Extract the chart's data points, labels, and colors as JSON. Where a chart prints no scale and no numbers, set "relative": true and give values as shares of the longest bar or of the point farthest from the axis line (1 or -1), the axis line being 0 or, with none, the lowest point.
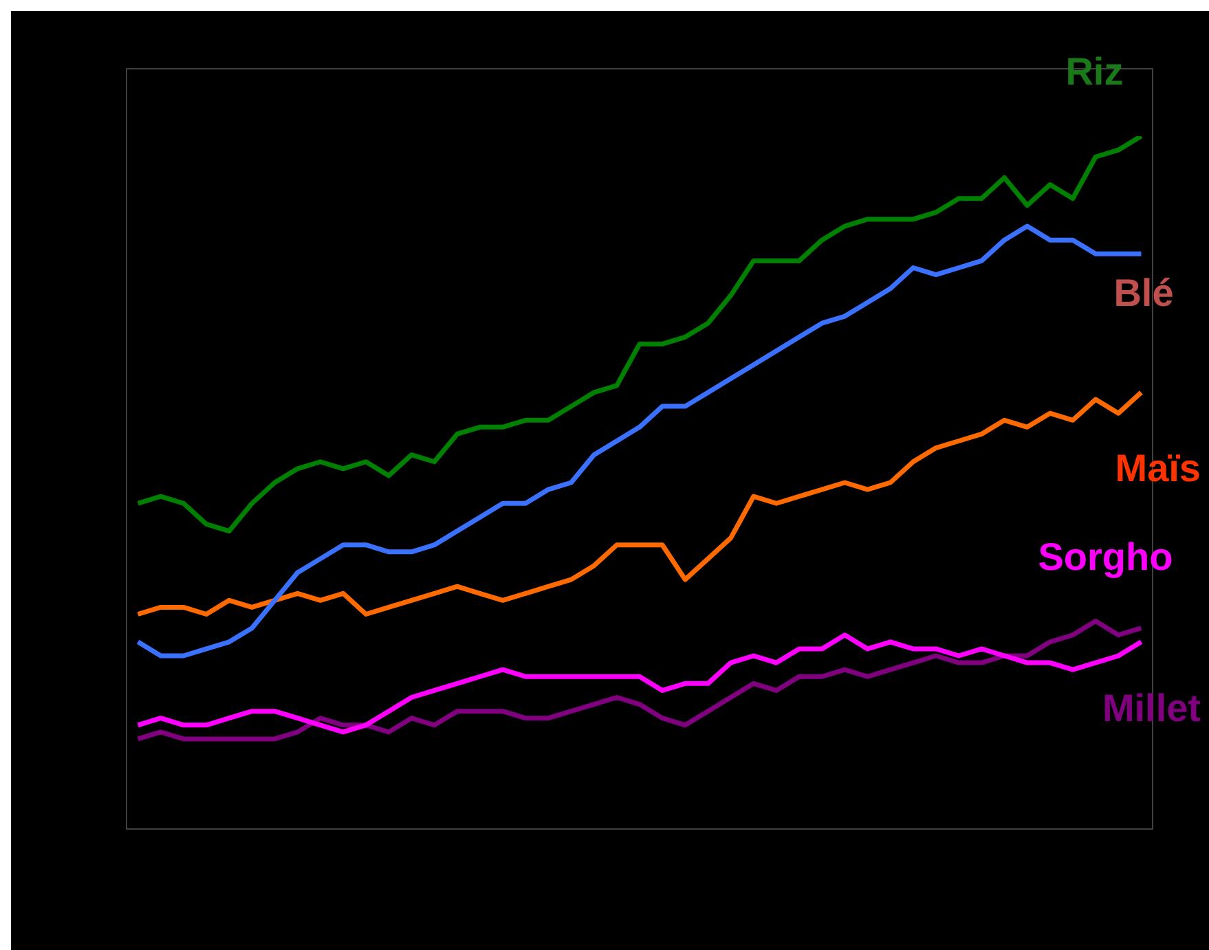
{
  "chart_data": {
    "type": "line",
    "relative": true,
    "legend": false,
    "marker": "none",
    "line_style": "solid",
    "categories": [
      null,
      null,
      null,
      null,
      null,
      null,
      null,
      null,
      null,
      null,
      null,
      null,
      null,
      null,
      null,
      null,
      null,
      null,
      null,
      null,
      null,
      null,
      null,
      null,
      null,
      null,
      null,
      null,
      null,
      null,
      null,
      null,
      null,
      null,
      null,
      null,
      null,
      null,
      null,
      null,
      null,
      null,
      null,
      null,
      null
    ],
    "series": [
      {
        "name": "Riz",
        "color": "#008000",
        "values": [
          0.47,
          0.48,
          0.47,
          0.44,
          0.43,
          0.47,
          0.5,
          0.52,
          0.53,
          0.52,
          0.53,
          0.51,
          0.54,
          0.53,
          0.57,
          0.58,
          0.58,
          0.59,
          0.59,
          0.61,
          0.63,
          0.64,
          0.7,
          0.7,
          0.71,
          0.73,
          0.77,
          0.82,
          0.82,
          0.82,
          0.85,
          0.87,
          0.88,
          0.88,
          0.88,
          0.89,
          0.91,
          0.91,
          0.94,
          0.9,
          0.93,
          0.91,
          0.97,
          0.98,
          1
        ]
      },
      {
        "name": "Blé",
        "color": "#3a72ff",
        "values": [
          0.27,
          0.25,
          0.25,
          0.26,
          0.27,
          0.29,
          0.33,
          0.37,
          0.39,
          0.41,
          0.41,
          0.4,
          0.4,
          0.41,
          0.43,
          0.45,
          0.47,
          0.47,
          0.49,
          0.5,
          0.54,
          0.56,
          0.58,
          0.61,
          0.61,
          0.63,
          0.65,
          0.67,
          0.69,
          0.71,
          0.73,
          0.74,
          0.76,
          0.78,
          0.81,
          0.8,
          0.81,
          0.82,
          0.85,
          0.87,
          0.85,
          0.85,
          0.83,
          0.83,
          0.83
        ]
      },
      {
        "name": "Maïs",
        "color": "#ff6a00",
        "values": [
          0.31,
          0.32,
          0.32,
          0.31,
          0.33,
          0.32,
          0.33,
          0.34,
          0.33,
          0.34,
          0.31,
          0.32,
          0.33,
          0.34,
          0.35,
          0.34,
          0.33,
          0.34,
          0.35,
          0.36,
          0.38,
          0.41,
          0.41,
          0.41,
          0.36,
          0.39,
          0.42,
          0.48,
          0.47,
          0.48,
          0.49,
          0.5,
          0.49,
          0.5,
          0.53,
          0.55,
          0.56,
          0.57,
          0.59,
          0.58,
          0.6,
          0.59,
          0.62,
          0.6,
          0.63
        ]
      },
      {
        "name": "Sorgho",
        "color": "#ff00ff",
        "values": [
          0.15,
          0.16,
          0.15,
          0.15,
          0.16,
          0.17,
          0.17,
          0.16,
          0.15,
          0.14,
          0.15,
          0.17,
          0.19,
          0.2,
          0.21,
          0.22,
          0.23,
          0.22,
          0.22,
          0.22,
          0.22,
          0.22,
          0.22,
          0.2,
          0.21,
          0.21,
          0.24,
          0.25,
          0.24,
          0.26,
          0.26,
          0.28,
          0.26,
          0.27,
          0.26,
          0.26,
          0.25,
          0.26,
          0.25,
          0.24,
          0.24,
          0.23,
          0.24,
          0.25,
          0.27
        ]
      },
      {
        "name": "Millet",
        "color": "#800080",
        "values": [
          0.13,
          0.14,
          0.13,
          0.13,
          0.13,
          0.13,
          0.13,
          0.14,
          0.16,
          0.15,
          0.15,
          0.14,
          0.16,
          0.15,
          0.17,
          0.17,
          0.17,
          0.16,
          0.16,
          0.17,
          0.18,
          0.19,
          0.18,
          0.16,
          0.15,
          0.17,
          0.19,
          0.21,
          0.2,
          0.22,
          0.22,
          0.23,
          0.22,
          0.23,
          0.24,
          0.25,
          0.24,
          0.24,
          0.25,
          0.25,
          0.27,
          0.28,
          0.3,
          0.28,
          0.29
        ]
      }
    ]
  }
}
